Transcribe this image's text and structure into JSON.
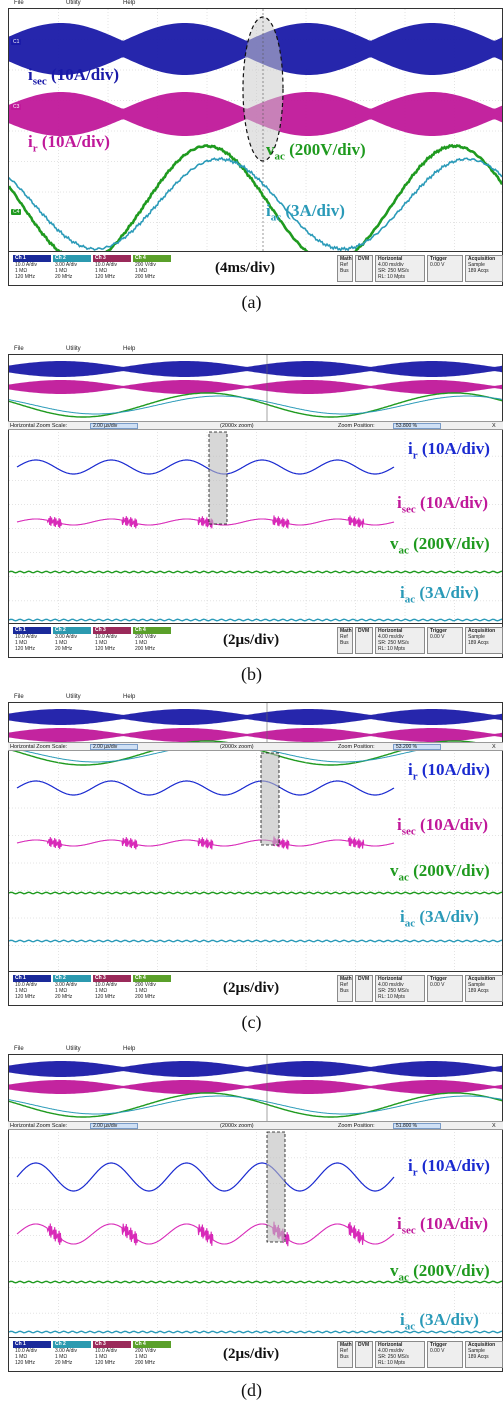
{
  "menu": {
    "file": "File",
    "utility": "Utility",
    "help": "Help"
  },
  "channels": [
    {
      "name": "Ch 1",
      "scale": "10.0 A/div",
      "imp": "1 MΩ",
      "bw": "120 MHz",
      "color": "#1a2a9a"
    },
    {
      "name": "Ch 2",
      "scale": "3.00 A/div",
      "imp": "1 MΩ",
      "bw": "20 MHz",
      "color": "#2c9ab0"
    },
    {
      "name": "Ch 3",
      "scale": "10.0 A/div",
      "imp": "1 MΩ",
      "bw": "120 MHz",
      "color": "#9a2a5a"
    },
    {
      "name": "Ch 4",
      "scale": "200 V/div",
      "imp": "1 MΩ",
      "bw": "200 MHz",
      "color": "#5aa02a"
    }
  ],
  "channel_tags": {
    "c1": "C1",
    "c2": "C2",
    "c3": "C3",
    "c4": "C4"
  },
  "status": {
    "math": "Math",
    "ref": "Ref",
    "bus": "Bus",
    "dvm": "DVM",
    "horizontal_title": "Horizontal",
    "horizontal_scale": "4.00 ms/div",
    "sample_rate": "SR: 250 MS/s",
    "record_length": "RL: 10 Mpts",
    "trigger_title": "Trigger",
    "trigger_value": "0.00 V",
    "acq_title": "Acquisition",
    "acq_mode": "Sample",
    "acq_count": "189 Acqs"
  },
  "zoom": {
    "label": "Horizontal Zoom Scale:",
    "scale": "2.00 µs/div",
    "zoom_factor": "(2000x zoom)",
    "position_label": "Zoom Position:",
    "close": "X",
    "positions": [
      "53.800 %",
      "53.200 %",
      "51.800 %"
    ]
  },
  "panels": [
    {
      "caption": "(a)",
      "timediv": "(4ms/div)",
      "labels": {
        "isec": {
          "main": "i",
          "sub": "sec",
          "rest": " (10A/div)"
        },
        "ir": {
          "main": "i",
          "sub": "r",
          "rest": " (10A/div)"
        },
        "vac": {
          "main": "v",
          "sub": "ac",
          "rest": " (200V/div)"
        },
        "iac": {
          "main": "i",
          "sub": "ac",
          "rest": " (3A/div)"
        }
      }
    },
    {
      "caption": "(b)",
      "timediv": "(2µs/div)",
      "labels": {
        "ir": {
          "main": "i",
          "sub": "r",
          "rest": " (10A/div)"
        },
        "isec": {
          "main": "i",
          "sub": "sec",
          "rest": " (10A/div)"
        },
        "vac": {
          "main": "v",
          "sub": "ac",
          "rest": " (200V/div)"
        },
        "iac": {
          "main": "i",
          "sub": "ac",
          "rest": " (3A/div)"
        }
      }
    },
    {
      "caption": "(c)",
      "timediv": "(2µs/div)",
      "labels": {
        "ir": {
          "main": "i",
          "sub": "r",
          "rest": " (10A/div)"
        },
        "isec": {
          "main": "i",
          "sub": "sec",
          "rest": " (10A/div)"
        },
        "vac": {
          "main": "v",
          "sub": "ac",
          "rest": " (200V/div)"
        },
        "iac": {
          "main": "i",
          "sub": "ac",
          "rest": " (3A/div)"
        }
      }
    },
    {
      "caption": "(d)",
      "timediv": "(2µs/div)",
      "labels": {
        "ir": {
          "main": "i",
          "sub": "r",
          "rest": " (10A/div)"
        },
        "isec": {
          "main": "i",
          "sub": "sec",
          "rest": " (10A/div)"
        },
        "vac": {
          "main": "v",
          "sub": "ac",
          "rest": " (200V/div)"
        },
        "iac": {
          "main": "i",
          "sub": "ac",
          "rest": " (3A/div)"
        }
      }
    }
  ],
  "colors": {
    "isec_blue": "#1a1aa8",
    "ir_magenta": "#c0189a",
    "vac_green": "#1f9a1f",
    "iac_cyan": "#2a9ab8",
    "zoom_blue": "#1a2ad0",
    "zoom_magenta": "#d82ab8"
  }
}
